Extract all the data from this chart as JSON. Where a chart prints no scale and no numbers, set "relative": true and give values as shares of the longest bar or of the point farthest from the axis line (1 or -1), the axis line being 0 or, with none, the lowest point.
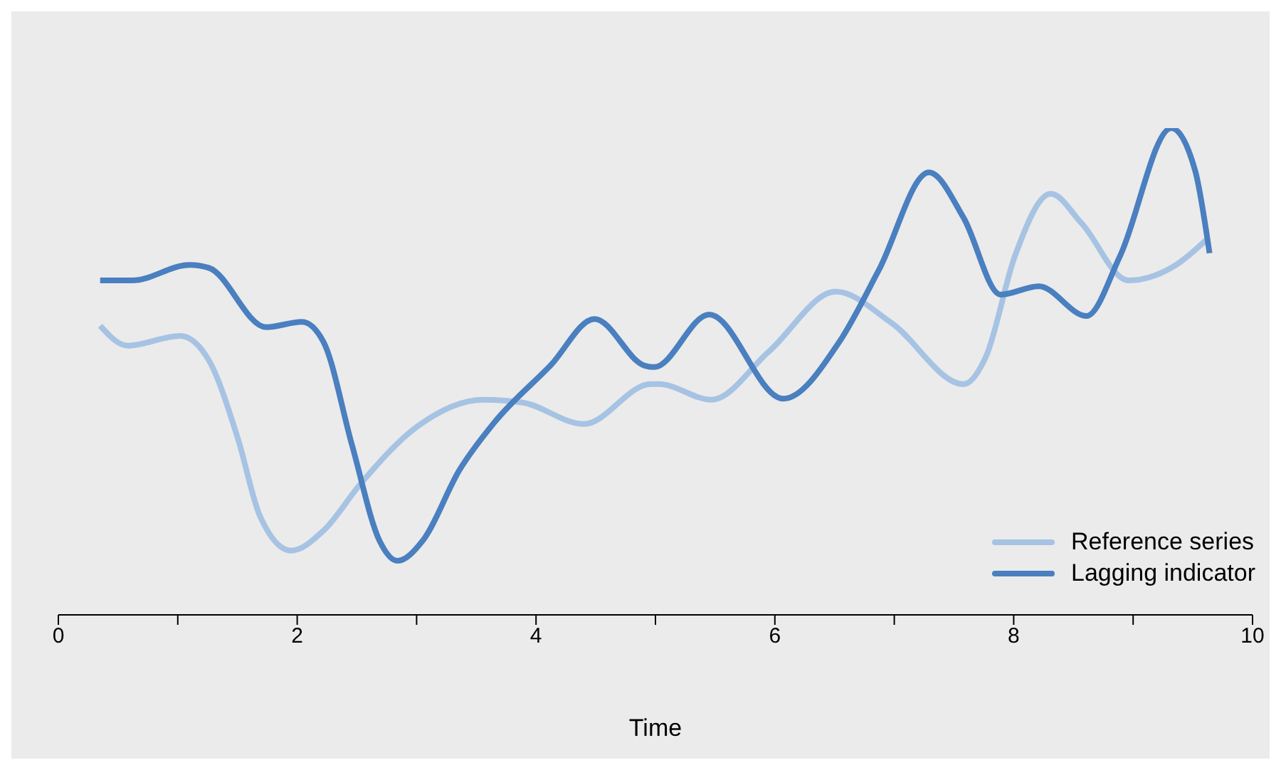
{
  "chart_data": {
    "type": "line",
    "xlabel": "Time",
    "relative": true,
    "xlim": [
      0,
      10
    ],
    "xticks": [
      0,
      {
        "value": 1,
        "label": null
      },
      2,
      {
        "value": 3,
        "label": null
      },
      4,
      {
        "value": 5,
        "label": null
      },
      6,
      {
        "value": 7,
        "label": null
      },
      8,
      {
        "value": 9,
        "label": null
      },
      10
    ],
    "legend": "bottom right",
    "grid": false,
    "marker": "none",
    "line_style": "solid",
    "series": [
      {
        "name": "Reference series",
        "color": "#a6c3e3",
        "x": [
          0.35,
          0.58,
          1.02,
          1.26,
          1.5,
          1.69,
          1.95,
          2.22,
          2.53,
          3.0,
          3.56,
          3.89,
          4.4,
          4.96,
          5.03,
          5.47,
          5.95,
          6.51,
          6.98,
          7.58,
          7.77,
          8.01,
          8.31,
          8.57,
          8.96,
          9.32,
          9.62
        ],
        "values": [
          0.594,
          0.553,
          0.573,
          0.523,
          0.365,
          0.202,
          0.132,
          0.173,
          0.269,
          0.386,
          0.442,
          0.436,
          0.392,
          0.474,
          0.474,
          0.442,
          0.541,
          0.664,
          0.599,
          0.474,
          0.532,
          0.737,
          0.865,
          0.804,
          0.687,
          0.713,
          0.772
        ]
      },
      {
        "name": "Lagging indicator",
        "color": "#4a7fc0",
        "x": [
          0.35,
          0.62,
          1.1,
          1.26,
          1.74,
          2.04,
          2.22,
          2.46,
          2.69,
          2.84,
          3.05,
          3.36,
          3.65,
          4.12,
          4.49,
          4.91,
          4.99,
          5.45,
          6.07,
          6.54,
          6.87,
          7.29,
          7.58,
          7.89,
          8.21,
          8.61,
          8.89,
          9.32,
          9.52,
          9.64
        ],
        "values": [
          0.687,
          0.687,
          0.719,
          0.713,
          0.591,
          0.602,
          0.561,
          0.348,
          0.152,
          0.111,
          0.152,
          0.298,
          0.395,
          0.512,
          0.608,
          0.512,
          0.509,
          0.617,
          0.444,
          0.561,
          0.708,
          0.909,
          0.816,
          0.658,
          0.675,
          0.614,
          0.737,
          1.0,
          0.912,
          0.743
        ]
      }
    ]
  }
}
